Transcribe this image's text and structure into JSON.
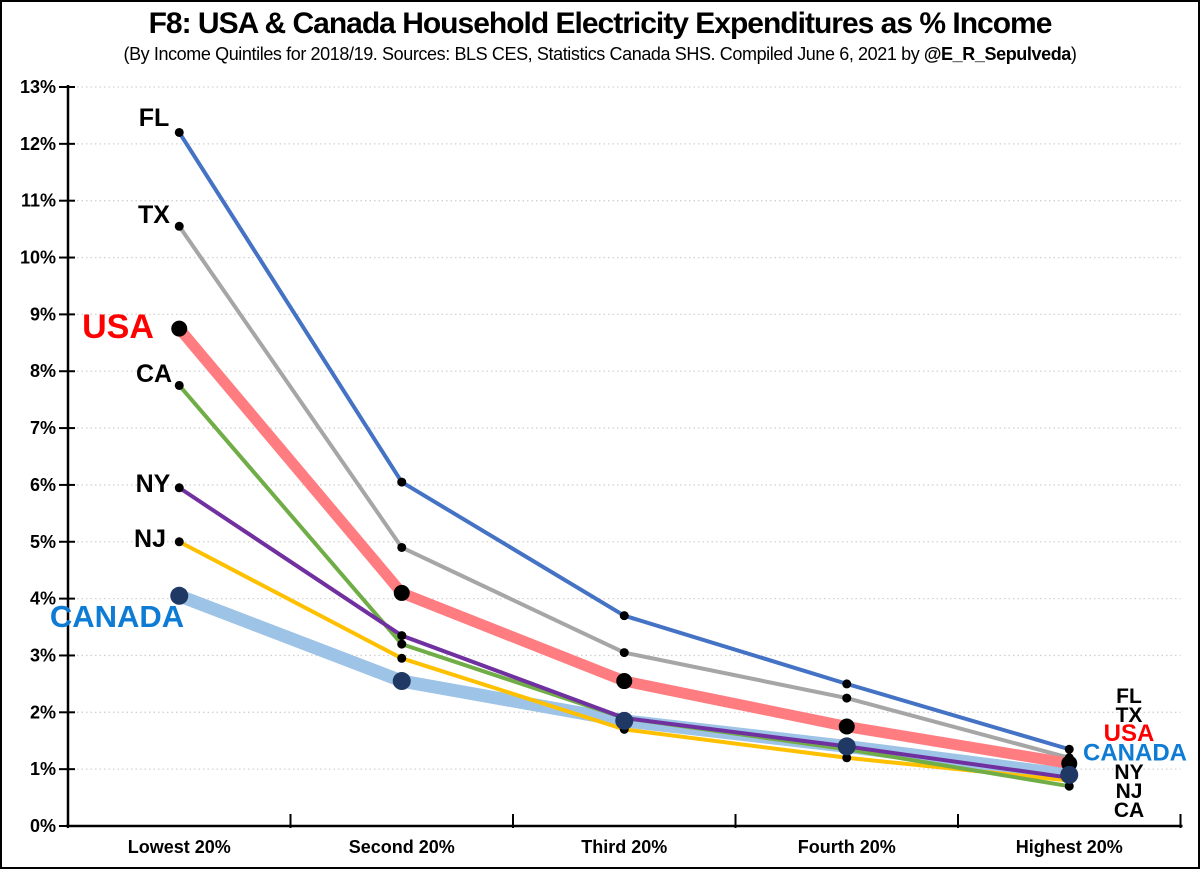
{
  "header": {
    "title": "F8: USA & Canada Household Electricity Expenditures as % Income",
    "subtitle_prefix": "(By Income Quintiles for 2018/19.  Sources: BLS CES, Statistics Canada SHS. Compiled June 6, 2021 by ",
    "subtitle_handle": "@E_R_Sepulveda",
    "subtitle_suffix": ")"
  },
  "chart_data": {
    "type": "line",
    "title": "F8: USA & Canada Household Electricity Expenditures as % Income",
    "categories": [
      "Lowest 20%",
      "Second 20%",
      "Third 20%",
      "Fourth 20%",
      "Highest 20%"
    ],
    "y_ticks": [
      "0%",
      "1%",
      "2%",
      "3%",
      "4%",
      "5%",
      "6%",
      "7%",
      "8%",
      "9%",
      "10%",
      "11%",
      "12%",
      "13%"
    ],
    "ylim": [
      0,
      13
    ],
    "grid": "horizontal-dotted",
    "legend_position": "inline-labels-left-and-right",
    "series": [
      {
        "name": "FL",
        "color": "#4472C4",
        "label_color": "#000000",
        "line_width": 4,
        "marker": "small",
        "marker_color": "#000000",
        "values": [
          12.2,
          6.05,
          3.7,
          2.5,
          1.35
        ]
      },
      {
        "name": "TX",
        "color": "#A6A6A6",
        "label_color": "#000000",
        "line_width": 4,
        "marker": "small",
        "marker_color": "#000000",
        "values": [
          10.55,
          4.9,
          3.05,
          2.25,
          1.2
        ]
      },
      {
        "name": "USA",
        "color": "#FF7C80",
        "label_color": "#FF0000",
        "line_width": 11,
        "marker": "large",
        "marker_color": "#000000",
        "values": [
          8.75,
          4.1,
          2.55,
          1.75,
          1.1
        ]
      },
      {
        "name": "CA",
        "color": "#70AD47",
        "label_color": "#000000",
        "line_width": 4,
        "marker": "small",
        "marker_color": "#000000",
        "values": [
          7.75,
          3.2,
          1.9,
          1.35,
          0.7
        ]
      },
      {
        "name": "NY",
        "color": "#7030A0",
        "label_color": "#000000",
        "line_width": 4,
        "marker": "small",
        "marker_color": "#000000",
        "values": [
          5.95,
          3.35,
          1.9,
          1.4,
          0.85
        ]
      },
      {
        "name": "NJ",
        "color": "#FFC000",
        "label_color": "#000000",
        "line_width": 4,
        "marker": "small",
        "marker_color": "#000000",
        "values": [
          5.0,
          2.95,
          1.7,
          1.2,
          0.8
        ]
      },
      {
        "name": "CANADA",
        "color": "#9DC3E6",
        "label_color": "#0E7CD4",
        "line_width": 13,
        "marker": "large",
        "marker_color": "#1F3864",
        "values": [
          4.05,
          2.55,
          1.85,
          1.4,
          0.9
        ]
      }
    ],
    "left_label_order": [
      "FL",
      "TX",
      "USA",
      "CA",
      "NY",
      "NJ",
      "CANADA"
    ],
    "right_label_order": [
      "FL",
      "TX",
      "USA",
      "CANADA",
      "NY",
      "NJ",
      "CA"
    ]
  }
}
